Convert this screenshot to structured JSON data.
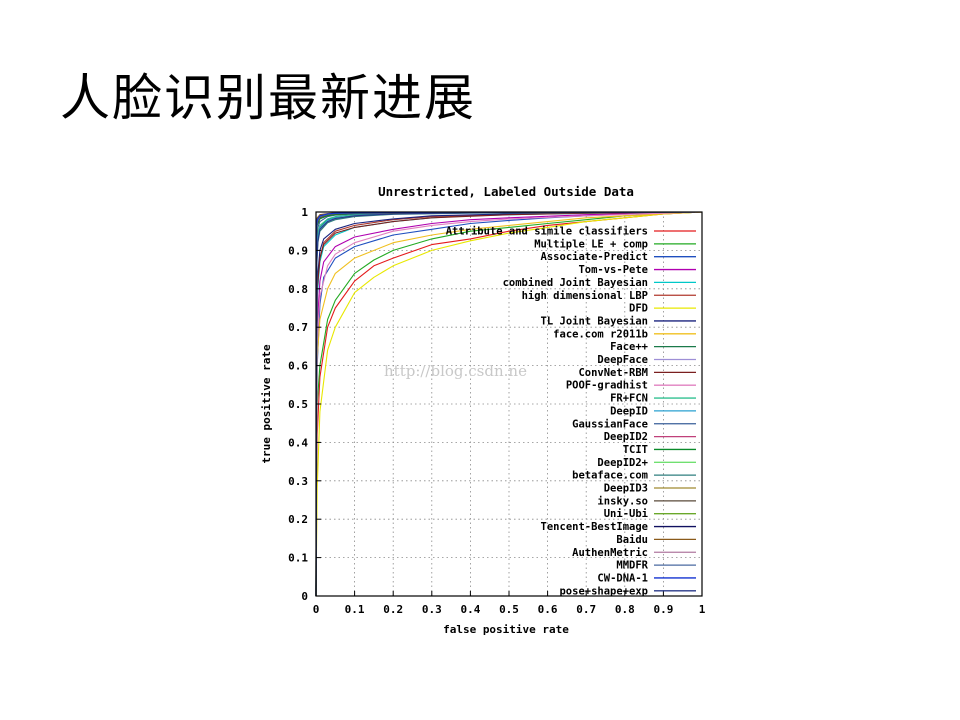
{
  "slide": {
    "title": "人脸识别最新进展"
  },
  "watermark": "http://blog.csdn.ne",
  "chart_data": {
    "type": "line",
    "title": "Unrestricted, Labeled Outside Data",
    "xlabel": "false positive rate",
    "ylabel": "true positive rate",
    "xlim": [
      0,
      1
    ],
    "ylim": [
      0,
      1
    ],
    "x_ticks": [
      "0",
      "0.1",
      "0.2",
      "0.3",
      "0.4",
      "0.5",
      "0.6",
      "0.7",
      "0.8",
      "0.9",
      "1"
    ],
    "y_ticks": [
      "0",
      "0.1",
      "0.2",
      "0.3",
      "0.4",
      "0.5",
      "0.6",
      "0.7",
      "0.8",
      "0.9",
      "1"
    ],
    "grid": true,
    "legend_position": "right",
    "series": [
      {
        "name": "Attribute and simile classifiers",
        "color": "#e41a1c",
        "x": [
          0,
          0.003,
          0.01,
          0.03,
          0.05,
          0.1,
          0.15,
          0.2,
          0.3,
          0.4,
          0.5,
          0.6,
          0.7,
          0.8,
          0.9,
          1
        ],
        "y": [
          0,
          0.42,
          0.57,
          0.7,
          0.75,
          0.82,
          0.86,
          0.88,
          0.915,
          0.93,
          0.95,
          0.965,
          0.975,
          0.985,
          0.995,
          1
        ]
      },
      {
        "name": "Multiple LE + comp",
        "color": "#22aa22",
        "x": [
          0,
          0.003,
          0.01,
          0.03,
          0.05,
          0.1,
          0.15,
          0.2,
          0.3,
          0.4,
          0.5,
          0.6,
          0.7,
          0.8,
          0.9,
          1
        ],
        "y": [
          0,
          0.5,
          0.6,
          0.72,
          0.77,
          0.84,
          0.875,
          0.9,
          0.93,
          0.95,
          0.96,
          0.97,
          0.98,
          0.99,
          0.995,
          1
        ]
      },
      {
        "name": "Associate-Predict",
        "color": "#1f4fbf",
        "x": [
          0,
          0.003,
          0.01,
          0.02,
          0.05,
          0.1,
          0.2,
          0.3,
          0.4,
          0.5,
          0.6,
          0.7,
          0.8,
          0.9,
          1
        ],
        "y": [
          0,
          0.6,
          0.76,
          0.83,
          0.88,
          0.91,
          0.94,
          0.955,
          0.97,
          0.978,
          0.985,
          0.99,
          0.995,
          0.998,
          1
        ]
      },
      {
        "name": "Tom-vs-Pete",
        "color": "#b000b0",
        "x": [
          0,
          0.003,
          0.01,
          0.02,
          0.05,
          0.1,
          0.2,
          0.3,
          0.4,
          0.5,
          0.7,
          0.9,
          1
        ],
        "y": [
          0,
          0.7,
          0.82,
          0.87,
          0.91,
          0.935,
          0.955,
          0.97,
          0.98,
          0.985,
          0.993,
          0.998,
          1
        ]
      },
      {
        "name": "combined Joint Bayesian",
        "color": "#00c8c8",
        "x": [
          0,
          0.003,
          0.01,
          0.02,
          0.05,
          0.1,
          0.2,
          0.3,
          0.4,
          0.6,
          0.8,
          1
        ],
        "y": [
          0,
          0.78,
          0.87,
          0.91,
          0.94,
          0.96,
          0.975,
          0.985,
          0.99,
          0.995,
          0.998,
          1
        ]
      },
      {
        "name": "high dimensional LBP",
        "color": "#b03a2e",
        "x": [
          0,
          0.003,
          0.01,
          0.02,
          0.05,
          0.1,
          0.2,
          0.3,
          0.5,
          0.7,
          1
        ],
        "y": [
          0,
          0.8,
          0.88,
          0.92,
          0.95,
          0.965,
          0.98,
          0.988,
          0.994,
          0.998,
          1
        ]
      },
      {
        "name": "DFD",
        "color": "#e8e800",
        "x": [
          0,
          0.003,
          0.01,
          0.03,
          0.05,
          0.1,
          0.15,
          0.2,
          0.3,
          0.4,
          0.5,
          0.6,
          0.7,
          0.8,
          0.9,
          1
        ],
        "y": [
          0,
          0.28,
          0.48,
          0.64,
          0.7,
          0.79,
          0.83,
          0.86,
          0.9,
          0.925,
          0.945,
          0.96,
          0.975,
          0.985,
          0.995,
          1
        ]
      },
      {
        "name": "TL Joint Bayesian",
        "color": "#1a237e",
        "x": [
          0,
          0.003,
          0.01,
          0.02,
          0.05,
          0.1,
          0.2,
          0.3,
          0.5,
          0.7,
          1
        ],
        "y": [
          0,
          0.82,
          0.9,
          0.93,
          0.955,
          0.97,
          0.982,
          0.99,
          0.995,
          0.998,
          1
        ]
      },
      {
        "name": "face.com r2011b",
        "color": "#f0c020",
        "x": [
          0,
          0.003,
          0.01,
          0.03,
          0.05,
          0.1,
          0.2,
          0.3,
          0.4,
          0.5,
          0.6,
          0.7,
          0.8,
          0.9,
          1
        ],
        "y": [
          0,
          0.62,
          0.72,
          0.8,
          0.84,
          0.88,
          0.92,
          0.94,
          0.955,
          0.965,
          0.975,
          0.985,
          0.99,
          0.995,
          1
        ]
      },
      {
        "name": "Face++",
        "color": "#1b7a4a",
        "x": [
          0,
          0.002,
          0.005,
          0.01,
          0.03,
          0.05,
          0.1,
          0.2,
          0.4,
          0.7,
          1
        ],
        "y": [
          0,
          0.9,
          0.94,
          0.96,
          0.98,
          0.985,
          0.99,
          0.995,
          0.998,
          0.999,
          1
        ]
      },
      {
        "name": "DeepFace",
        "color": "#9e8fd6",
        "x": [
          0,
          0.002,
          0.005,
          0.01,
          0.03,
          0.05,
          0.1,
          0.2,
          0.4,
          0.7,
          1
        ],
        "y": [
          0,
          0.88,
          0.93,
          0.955,
          0.975,
          0.982,
          0.99,
          0.995,
          0.998,
          0.999,
          1
        ]
      },
      {
        "name": "ConvNet-RBM",
        "color": "#7a1f1f",
        "x": [
          0,
          0.003,
          0.01,
          0.02,
          0.05,
          0.1,
          0.2,
          0.3,
          0.5,
          0.7,
          1
        ],
        "y": [
          0,
          0.8,
          0.88,
          0.915,
          0.945,
          0.96,
          0.975,
          0.985,
          0.993,
          0.997,
          1
        ]
      },
      {
        "name": "POOF-gradhist",
        "color": "#e080c0",
        "x": [
          0,
          0.003,
          0.01,
          0.03,
          0.05,
          0.1,
          0.2,
          0.3,
          0.4,
          0.5,
          0.7,
          0.9,
          1
        ],
        "y": [
          0,
          0.66,
          0.78,
          0.86,
          0.89,
          0.92,
          0.95,
          0.965,
          0.975,
          0.982,
          0.99,
          0.997,
          1
        ]
      },
      {
        "name": "FR+FCN",
        "color": "#30c090",
        "x": [
          0,
          0.002,
          0.005,
          0.01,
          0.03,
          0.05,
          0.1,
          0.2,
          0.4,
          0.7,
          1
        ],
        "y": [
          0,
          0.9,
          0.945,
          0.965,
          0.982,
          0.988,
          0.993,
          0.996,
          0.998,
          0.999,
          1
        ]
      },
      {
        "name": "DeepID",
        "color": "#2aa0d0",
        "x": [
          0,
          0.002,
          0.005,
          0.01,
          0.03,
          0.05,
          0.1,
          0.2,
          0.4,
          0.7,
          1
        ],
        "y": [
          0,
          0.88,
          0.935,
          0.958,
          0.978,
          0.985,
          0.99,
          0.995,
          0.998,
          0.999,
          1
        ]
      },
      {
        "name": "GaussianFace",
        "color": "#3a5f9a",
        "x": [
          0,
          0.002,
          0.005,
          0.01,
          0.03,
          0.05,
          0.1,
          0.2,
          0.4,
          0.7,
          1
        ],
        "y": [
          0,
          0.93,
          0.96,
          0.975,
          0.988,
          0.992,
          0.995,
          0.997,
          0.999,
          0.9995,
          1
        ]
      },
      {
        "name": "DeepID2",
        "color": "#c0407a",
        "x": [
          0,
          0.001,
          0.003,
          0.01,
          0.03,
          0.05,
          0.1,
          0.2,
          0.4,
          0.7,
          1
        ],
        "y": [
          0,
          0.94,
          0.97,
          0.985,
          0.992,
          0.995,
          0.997,
          0.998,
          0.999,
          0.9995,
          1
        ]
      },
      {
        "name": "TCIT",
        "color": "#0a8a2a",
        "x": [
          0,
          0.001,
          0.003,
          0.01,
          0.03,
          0.05,
          0.1,
          0.2,
          0.4,
          0.7,
          1
        ],
        "y": [
          0,
          0.93,
          0.965,
          0.982,
          0.99,
          0.993,
          0.996,
          0.998,
          0.999,
          0.9995,
          1
        ]
      },
      {
        "name": "DeepID2+",
        "color": "#70e070",
        "x": [
          0,
          0.001,
          0.003,
          0.01,
          0.03,
          0.05,
          0.1,
          0.2,
          0.4,
          0.7,
          1
        ],
        "y": [
          0,
          0.95,
          0.975,
          0.988,
          0.994,
          0.996,
          0.998,
          0.999,
          0.9995,
          0.9998,
          1
        ]
      },
      {
        "name": "betaface.com",
        "color": "#2f7f7f",
        "x": [
          0,
          0.002,
          0.005,
          0.01,
          0.03,
          0.05,
          0.1,
          0.2,
          0.4,
          0.7,
          1
        ],
        "y": [
          0,
          0.86,
          0.92,
          0.95,
          0.972,
          0.98,
          0.988,
          0.994,
          0.997,
          0.999,
          1
        ]
      },
      {
        "name": "DeepID3",
        "color": "#a08a30",
        "x": [
          0,
          0.001,
          0.003,
          0.01,
          0.03,
          0.05,
          0.1,
          0.2,
          0.4,
          0.7,
          1
        ],
        "y": [
          0,
          0.955,
          0.978,
          0.99,
          0.995,
          0.997,
          0.998,
          0.999,
          0.9995,
          0.9998,
          1
        ]
      },
      {
        "name": "insky.so",
        "color": "#5a4a3a",
        "x": [
          0,
          0.001,
          0.003,
          0.01,
          0.03,
          0.05,
          0.1,
          0.2,
          0.4,
          0.7,
          1
        ],
        "y": [
          0,
          0.94,
          0.97,
          0.985,
          0.993,
          0.995,
          0.997,
          0.998,
          0.999,
          0.9995,
          1
        ]
      },
      {
        "name": "Uni-Ubi",
        "color": "#6aa82a",
        "x": [
          0,
          0.001,
          0.003,
          0.01,
          0.03,
          0.05,
          0.1,
          0.2,
          0.4,
          0.7,
          1
        ],
        "y": [
          0,
          0.95,
          0.975,
          0.988,
          0.994,
          0.996,
          0.998,
          0.999,
          0.9995,
          0.9998,
          1
        ]
      },
      {
        "name": "Tencent-BestImage",
        "color": "#101060",
        "x": [
          0,
          0.001,
          0.003,
          0.01,
          0.03,
          0.05,
          0.1,
          0.2,
          0.4,
          0.7,
          1
        ],
        "y": [
          0,
          0.96,
          0.98,
          0.99,
          0.995,
          0.997,
          0.998,
          0.999,
          0.9995,
          0.9998,
          1
        ]
      },
      {
        "name": "Baidu",
        "color": "#8a5a1a",
        "x": [
          0,
          0.001,
          0.003,
          0.01,
          0.03,
          0.05,
          0.1,
          0.2,
          0.4,
          0.7,
          1
        ],
        "y": [
          0,
          0.97,
          0.985,
          0.993,
          0.996,
          0.998,
          0.999,
          0.9995,
          0.9998,
          0.9999,
          1
        ]
      },
      {
        "name": "AuthenMetric",
        "color": "#b07aa0",
        "x": [
          0,
          0.001,
          0.003,
          0.01,
          0.03,
          0.05,
          0.1,
          0.2,
          0.4,
          0.7,
          1
        ],
        "y": [
          0,
          0.955,
          0.978,
          0.99,
          0.995,
          0.997,
          0.998,
          0.999,
          0.9995,
          0.9998,
          1
        ]
      },
      {
        "name": "MMDFR",
        "color": "#4a6aa0",
        "x": [
          0,
          0.001,
          0.003,
          0.01,
          0.03,
          0.05,
          0.1,
          0.2,
          0.4,
          0.7,
          1
        ],
        "y": [
          0,
          0.95,
          0.975,
          0.988,
          0.994,
          0.996,
          0.998,
          0.999,
          0.9995,
          0.9998,
          1
        ]
      },
      {
        "name": "CW-DNA-1",
        "color": "#1030d0",
        "x": [
          0,
          0.001,
          0.003,
          0.01,
          0.03,
          0.05,
          0.1,
          0.2,
          0.4,
          0.7,
          1
        ],
        "y": [
          0,
          0.958,
          0.98,
          0.99,
          0.995,
          0.997,
          0.998,
          0.999,
          0.9995,
          0.9998,
          1
        ]
      },
      {
        "name": "pose+shape+exp",
        "color": "#2a3a8a",
        "x": [
          0,
          0.002,
          0.005,
          0.01,
          0.03,
          0.05,
          0.1,
          0.2,
          0.4,
          0.7,
          1
        ],
        "y": [
          0,
          0.87,
          0.925,
          0.955,
          0.975,
          0.983,
          0.99,
          0.995,
          0.998,
          0.999,
          1
        ]
      }
    ]
  }
}
